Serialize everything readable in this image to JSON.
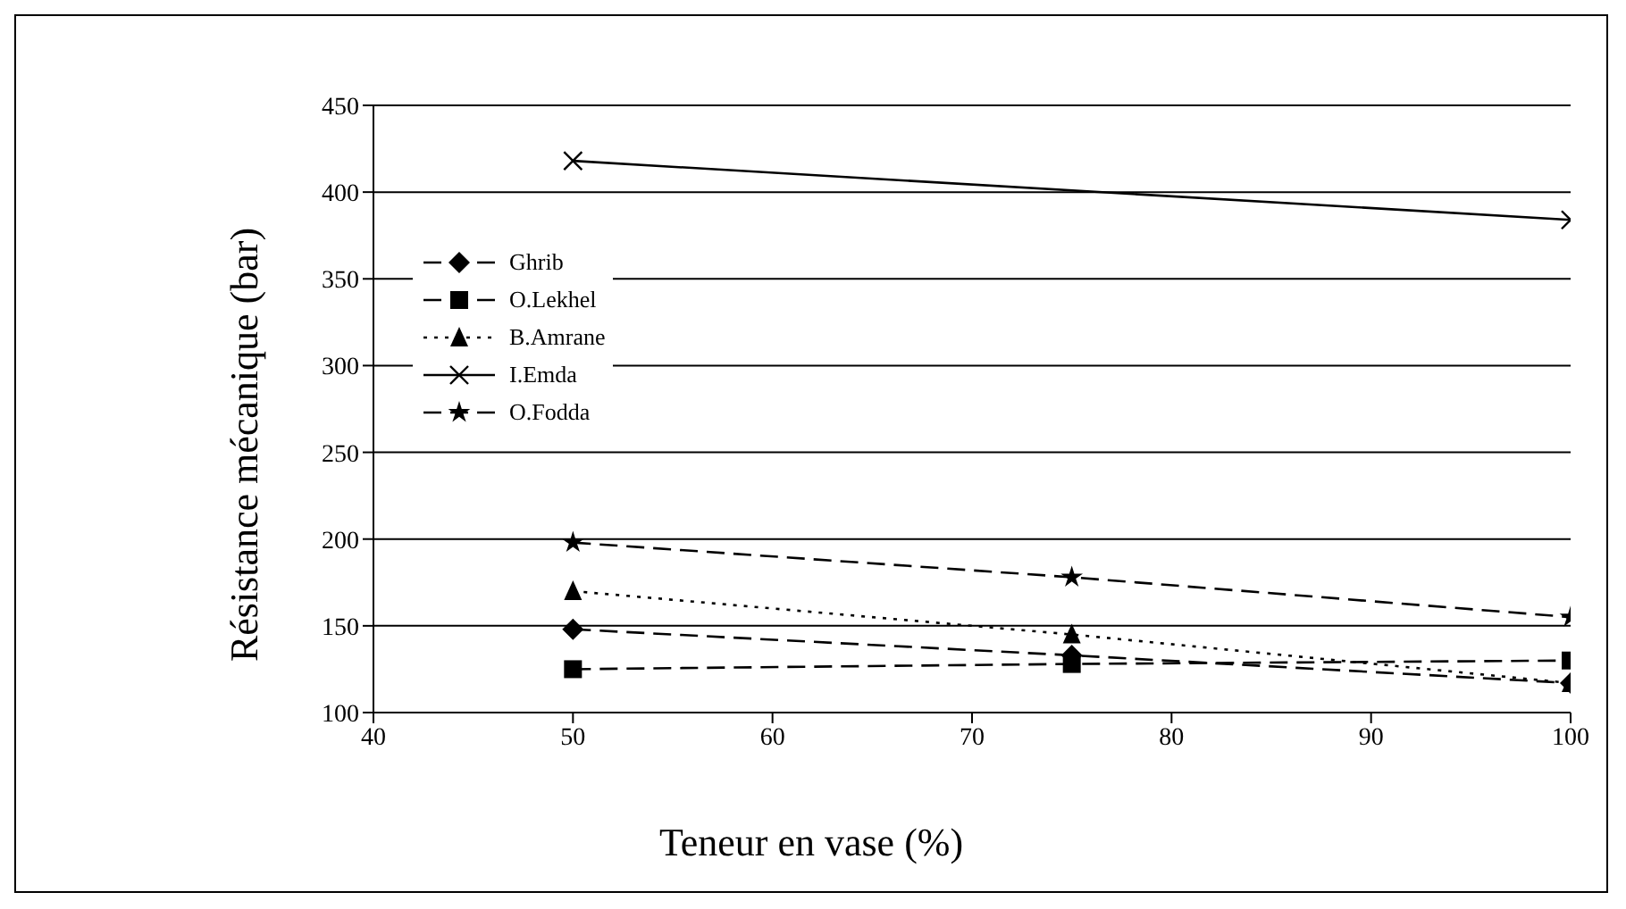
{
  "chart_data": {
    "type": "line",
    "xlabel": "Teneur en vase (%)",
    "ylabel": "Résistance mécanique (bar)",
    "x": [
      50,
      75,
      100
    ],
    "series": [
      {
        "name": "Ghrib",
        "color": "#000000",
        "marker": "diamond",
        "line_style": "dashed",
        "values": [
          148,
          133,
          117
        ]
      },
      {
        "name": "O.Lekhel",
        "color": "#000000",
        "marker": "square",
        "line_style": "dashed",
        "values": [
          125,
          128,
          130
        ]
      },
      {
        "name": "B.Amrane",
        "color": "#000000",
        "marker": "triangle",
        "line_style": "dotted",
        "values": [
          170,
          145,
          117
        ]
      },
      {
        "name": "I.Emda",
        "color": "#000000",
        "marker": "cross",
        "line_style": "solid",
        "values": [
          418,
          null,
          384
        ]
      },
      {
        "name": "O.Fodda",
        "color": "#000000",
        "marker": "star",
        "line_style": "dashed",
        "values": [
          198,
          178,
          155
        ]
      }
    ],
    "xlim": [
      40,
      100
    ],
    "xticks": [
      40,
      50,
      60,
      70,
      80,
      90,
      100
    ],
    "ylim": [
      100,
      450
    ],
    "yticks": [
      100,
      150,
      200,
      250,
      300,
      350,
      400,
      450
    ],
    "grid": "y",
    "legend": "top left"
  }
}
